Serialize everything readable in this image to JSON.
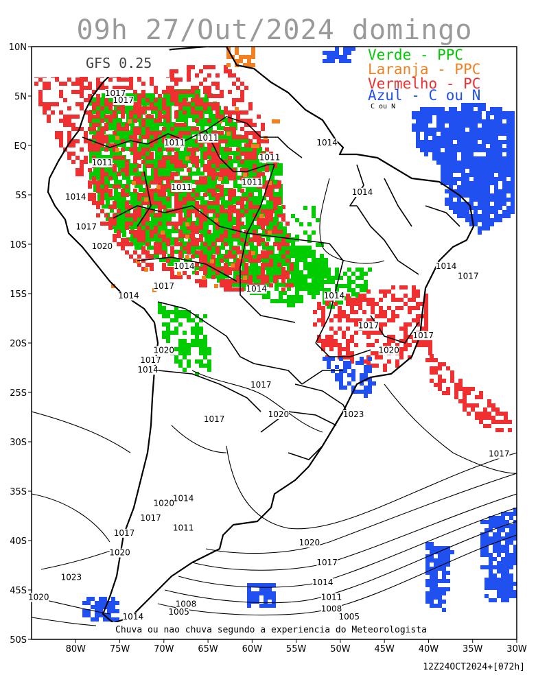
{
  "title": "09h 27/Out/2024 domingo",
  "model": "GFS 0.25",
  "legend": [
    {
      "text": "Verde - PPC",
      "color": "#00cc00"
    },
    {
      "text": "Laranja - PPC",
      "color": "#f08020"
    },
    {
      "text": "Vermelho - PC",
      "color": "#f03030"
    },
    {
      "text": "Azul - C ou N",
      "color": "#2050f0"
    }
  ],
  "legend_overlap": "C ou N",
  "footer": "Chuva ou nao chuva segundo a experiencia do Meteorologista",
  "stamp": "12Z24OCT2024+[072h]",
  "lat_ticks": [
    "10N",
    "5N",
    "EQ",
    "5S",
    "10S",
    "15S",
    "20S",
    "25S",
    "30S",
    "35S",
    "40S",
    "45S",
    "50S"
  ],
  "lon_ticks": [
    "80W",
    "75W",
    "70W",
    "65W",
    "60W",
    "55W",
    "50W",
    "45W",
    "40W",
    "35W",
    "30W"
  ],
  "isobar_labels": [
    {
      "text": "1017",
      "lon": -75.5,
      "lat": 5.0
    },
    {
      "text": "1017",
      "lon": -74.6,
      "lat": 4.3
    },
    {
      "text": "1011",
      "lon": -68.8,
      "lat": 0.0
    },
    {
      "text": "1011",
      "lon": -65.0,
      "lat": 0.5
    },
    {
      "text": "1011",
      "lon": -77.0,
      "lat": -2.0
    },
    {
      "text": "1011",
      "lon": -58.0,
      "lat": -1.5
    },
    {
      "text": "1011",
      "lon": -60.0,
      "lat": -4.0
    },
    {
      "text": "1011",
      "lon": -68.0,
      "lat": -4.5
    },
    {
      "text": "1014",
      "lon": -51.5,
      "lat": 0.0
    },
    {
      "text": "1014",
      "lon": -47.5,
      "lat": -5.0
    },
    {
      "text": "1014",
      "lon": -80.0,
      "lat": -5.5
    },
    {
      "text": "1017",
      "lon": -78.8,
      "lat": -8.5
    },
    {
      "text": "1020",
      "lon": -77.0,
      "lat": -10.5
    },
    {
      "text": "1014",
      "lon": -67.7,
      "lat": -12.5
    },
    {
      "text": "1017",
      "lon": -70.0,
      "lat": -14.5
    },
    {
      "text": "1014",
      "lon": -59.5,
      "lat": -14.8
    },
    {
      "text": "1014",
      "lon": -50.7,
      "lat": -15.5
    },
    {
      "text": "1014",
      "lon": -74.0,
      "lat": -15.5
    },
    {
      "text": "1014",
      "lon": -38.0,
      "lat": -12.5
    },
    {
      "text": "1017",
      "lon": -35.5,
      "lat": -13.5
    },
    {
      "text": "1017",
      "lon": -46.8,
      "lat": -18.5
    },
    {
      "text": "1017",
      "lon": -40.6,
      "lat": -19.5
    },
    {
      "text": "1020",
      "lon": -70.0,
      "lat": -21.0
    },
    {
      "text": "1017",
      "lon": -71.5,
      "lat": -22.0
    },
    {
      "text": "1014",
      "lon": -71.8,
      "lat": -23.0
    },
    {
      "text": "1020",
      "lon": -44.5,
      "lat": -21.0
    },
    {
      "text": "1017",
      "lon": -59.0,
      "lat": -24.5
    },
    {
      "text": "1020",
      "lon": -57.0,
      "lat": -27.5
    },
    {
      "text": "1023",
      "lon": -48.5,
      "lat": -27.5
    },
    {
      "text": "1017",
      "lon": -64.3,
      "lat": -28.0
    },
    {
      "text": "1017",
      "lon": -32.0,
      "lat": -31.5
    },
    {
      "text": "1014",
      "lon": -67.8,
      "lat": -36.0
    },
    {
      "text": "1020",
      "lon": -70.0,
      "lat": -36.5
    },
    {
      "text": "1017",
      "lon": -71.5,
      "lat": -38.0
    },
    {
      "text": "1011",
      "lon": -67.8,
      "lat": -39.0
    },
    {
      "text": "1017",
      "lon": -74.5,
      "lat": -39.5
    },
    {
      "text": "1020",
      "lon": -75.0,
      "lat": -41.5
    },
    {
      "text": "1020",
      "lon": -53.5,
      "lat": -40.5
    },
    {
      "text": "1017",
      "lon": -51.5,
      "lat": -42.5
    },
    {
      "text": "1014",
      "lon": -52.0,
      "lat": -44.5
    },
    {
      "text": "1023",
      "lon": -80.5,
      "lat": -44.0
    },
    {
      "text": "1011",
      "lon": -51.0,
      "lat": -46.0
    },
    {
      "text": "1020",
      "lon": -84.2,
      "lat": -46.0
    },
    {
      "text": "1008",
      "lon": -67.5,
      "lat": -46.7
    },
    {
      "text": "1008",
      "lon": -51.0,
      "lat": -47.2
    },
    {
      "text": "1005",
      "lon": -68.3,
      "lat": -47.5
    },
    {
      "text": "1005",
      "lon": -49.0,
      "lat": -48.0
    },
    {
      "text": "1014",
      "lon": -73.5,
      "lat": -48.0
    }
  ],
  "colors": {
    "green": "#00cc00",
    "orange": "#f08020",
    "red": "#f03030",
    "blue": "#2050f0"
  }
}
